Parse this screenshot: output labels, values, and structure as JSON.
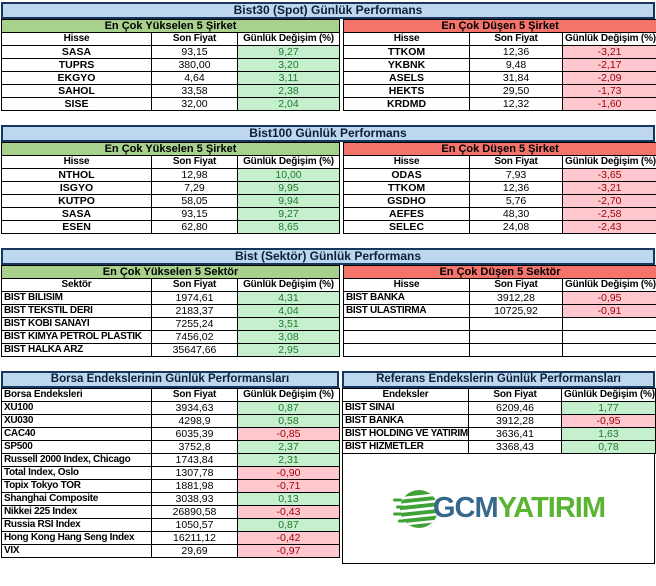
{
  "colors": {
    "title_bar_bg": "#BDD7EE",
    "title_border": "#17375E",
    "gainers_header_bg": "#A9D18E",
    "losers_header_bg": "#F4736B",
    "positive_cell_bg": "#C6EFCE",
    "positive_text": "#1F7A2E",
    "negative_cell_bg": "#FFC7CE",
    "negative_text": "#9C0006",
    "logo_blue": "#38678C",
    "logo_green": "#5AB431"
  },
  "sections": [
    {
      "title": "Bist30 (Spot) Günlük Performans",
      "left": {
        "header": "En Çok Yükselen 5 Şirket",
        "columns": [
          "Hisse",
          "Son Fiyat",
          "Günlük Değişim (%)"
        ],
        "name_align": "center",
        "rows": [
          {
            "name": "SASA",
            "price": "93,15",
            "change": "9,27",
            "dir": "up"
          },
          {
            "name": "TUPRS",
            "price": "380,00",
            "change": "3,20",
            "dir": "up"
          },
          {
            "name": "EKGYO",
            "price": "4,64",
            "change": "3,11",
            "dir": "up"
          },
          {
            "name": "SAHOL",
            "price": "33,58",
            "change": "2,38",
            "dir": "up"
          },
          {
            "name": "SISE",
            "price": "32,00",
            "change": "2,04",
            "dir": "up"
          }
        ]
      },
      "right": {
        "header": "En Çok Düşen 5 Şirket",
        "columns": [
          "Hisse",
          "Son Fiyat",
          "Günlük Değişim (%)"
        ],
        "name_align": "center",
        "rows": [
          {
            "name": "TTKOM",
            "price": "12,36",
            "change": "-3,21",
            "dir": "down"
          },
          {
            "name": "YKBNK",
            "price": "9,48",
            "change": "-2,17",
            "dir": "down"
          },
          {
            "name": "ASELS",
            "price": "31,84",
            "change": "-2,09",
            "dir": "down"
          },
          {
            "name": "HEKTS",
            "price": "29,50",
            "change": "-1,73",
            "dir": "down"
          },
          {
            "name": "KRDMD",
            "price": "12,32",
            "change": "-1,60",
            "dir": "down"
          }
        ]
      }
    },
    {
      "title": "Bist100 Günlük Performans",
      "left": {
        "header": "En Çok Yükselen 5 Şirket",
        "columns": [
          "Hisse",
          "Son Fiyat",
          "Günlük Değişim (%)"
        ],
        "name_align": "center",
        "rows": [
          {
            "name": "NTHOL",
            "price": "12,98",
            "change": "10,00",
            "dir": "up"
          },
          {
            "name": "ISGYO",
            "price": "7,29",
            "change": "9,95",
            "dir": "up"
          },
          {
            "name": "KUTPO",
            "price": "58,05",
            "change": "9,94",
            "dir": "up"
          },
          {
            "name": "SASA",
            "price": "93,15",
            "change": "9,27",
            "dir": "up"
          },
          {
            "name": "ESEN",
            "price": "62,80",
            "change": "8,65",
            "dir": "up"
          }
        ]
      },
      "right": {
        "header": "En Çok Düşen 5 Şirket",
        "columns": [
          "Hisse",
          "Son Fiyat",
          "Günlük Değişim (%)"
        ],
        "name_align": "center",
        "rows": [
          {
            "name": "ODAS",
            "price": "7,93",
            "change": "-3,65",
            "dir": "down"
          },
          {
            "name": "TTKOM",
            "price": "12,36",
            "change": "-3,21",
            "dir": "down"
          },
          {
            "name": "GSDHO",
            "price": "5,76",
            "change": "-2,70",
            "dir": "down"
          },
          {
            "name": "AEFES",
            "price": "48,30",
            "change": "-2,58",
            "dir": "down"
          },
          {
            "name": "SELEC",
            "price": "24,08",
            "change": "-2,43",
            "dir": "down"
          }
        ]
      }
    },
    {
      "title": "Bist (Sektör) Günlük Performans",
      "left": {
        "header": "En Çok Yükselen 5 Sektör",
        "columns": [
          "Sektör",
          "Son Fiyat",
          "Günlük Değişim (%)"
        ],
        "name_align": "left",
        "rows": [
          {
            "name": "BIST BILISIM",
            "price": "1974,61",
            "change": "4,31",
            "dir": "up"
          },
          {
            "name": "BIST TEKSTIL DERI",
            "price": "2183,37",
            "change": "4,04",
            "dir": "up"
          },
          {
            "name": "BIST KOBI SANAYI",
            "price": "7255,24",
            "change": "3,51",
            "dir": "up"
          },
          {
            "name": "BIST KIMYA PETROL PLASTIK",
            "price": "7456,02",
            "change": "3,08",
            "dir": "up"
          },
          {
            "name": "BIST HALKA ARZ",
            "price": "35647,66",
            "change": "2,95",
            "dir": "up"
          }
        ]
      },
      "right": {
        "header": "En Çok Düşen 5 Sektör",
        "columns": [
          "Hisse",
          "Son Fiyat",
          "Günlük Değişim (%)"
        ],
        "name_align": "left",
        "rows": [
          {
            "name": "BIST BANKA",
            "price": "3912,28",
            "change": "-0,95",
            "dir": "down"
          },
          {
            "name": "BIST ULASTIRMA",
            "price": "10725,92",
            "change": "-0,91",
            "dir": "down"
          },
          {
            "name": "",
            "price": "",
            "change": "",
            "dir": "none"
          },
          {
            "name": "",
            "price": "",
            "change": "",
            "dir": "none"
          },
          {
            "name": "",
            "price": "",
            "change": "",
            "dir": "none"
          }
        ]
      }
    }
  ],
  "bottom": {
    "left": {
      "title": "Borsa Endekslerinin Günlük Performansları",
      "columns": [
        "Borsa Endeksleri",
        "Son Fiyat",
        "Günlük Değişim (%)"
      ],
      "name_align": "left",
      "rows": [
        {
          "name": "XU100",
          "price": "3934,63",
          "change": "0,87",
          "dir": "up"
        },
        {
          "name": "XU030",
          "price": "4298,9",
          "change": "0,58",
          "dir": "up"
        },
        {
          "name": "CAC40",
          "price": "6035,39",
          "change": "-0,85",
          "dir": "down"
        },
        {
          "name": "SP500",
          "price": "3752,8",
          "change": "2,37",
          "dir": "up"
        },
        {
          "name": "Russell 2000 Index, Chicago",
          "price": "1743,84",
          "change": "2,31",
          "dir": "up"
        },
        {
          "name": "Total Index, Oslo",
          "price": "1307,78",
          "change": "-0,90",
          "dir": "down"
        },
        {
          "name": "Topix Tokyo TOR",
          "price": "1881,98",
          "change": "-0,71",
          "dir": "down"
        },
        {
          "name": "Shanghai Composite",
          "price": "3038,93",
          "change": "0,13",
          "dir": "up"
        },
        {
          "name": "Nikkei 225 Index",
          "price": "26890,58",
          "change": "-0,43",
          "dir": "down"
        },
        {
          "name": "Russia RSI Index",
          "price": "1050,57",
          "change": "0,87",
          "dir": "up"
        },
        {
          "name": "Hong Kong Hang Seng Index",
          "price": "16211,12",
          "change": "-0,42",
          "dir": "down"
        },
        {
          "name": "VIX",
          "price": "29,69",
          "change": "-0,97",
          "dir": "down"
        }
      ]
    },
    "right": {
      "title": "Referans Endekslerin  Günlük Performansları",
      "columns": [
        "Endeksler",
        "Son Fiyat",
        "Günlük Değişim (%)"
      ],
      "name_align": "left",
      "rows": [
        {
          "name": "BIST SINAI",
          "price": "6209,46",
          "change": "1,77",
          "dir": "up"
        },
        {
          "name": "BIST BANKA",
          "price": "3912,28",
          "change": "-0,95",
          "dir": "down"
        },
        {
          "name": "BIST HOLDING VE YATIRIM",
          "price": "3636,41",
          "change": "1,63",
          "dir": "up"
        },
        {
          "name": "BIST HIZMETLER",
          "price": "3368,43",
          "change": "0,78",
          "dir": "up"
        }
      ]
    }
  },
  "logo": {
    "primary": "GCM",
    "secondary": "YATIRIM"
  }
}
